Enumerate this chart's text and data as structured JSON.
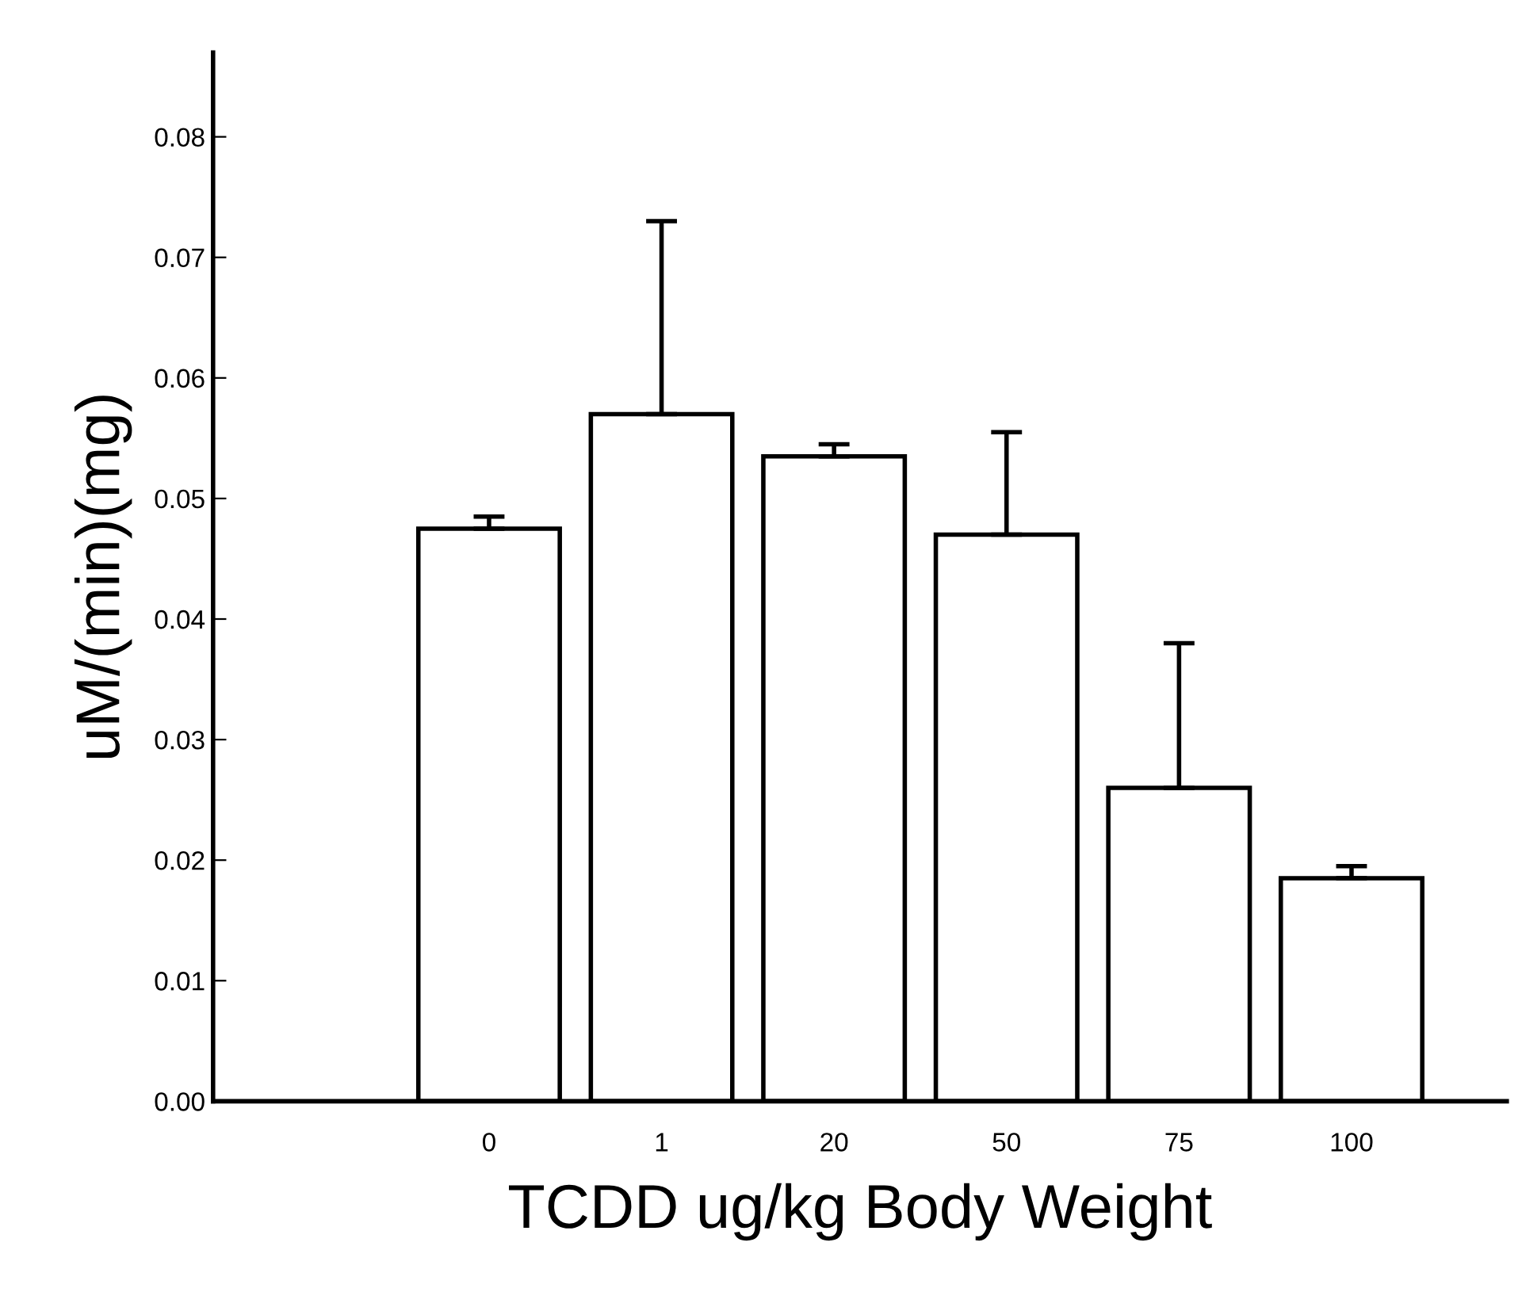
{
  "chart_data": {
    "type": "bar",
    "xlabel": "TCDD ug/kg Body Weight",
    "ylabel": "uM/(min)(mg)",
    "categories": [
      "0",
      "1",
      "20",
      "50",
      "75",
      "100"
    ],
    "values": [
      0.0475,
      0.057,
      0.0535,
      0.047,
      0.026,
      0.0185
    ],
    "errors": [
      [
        0.0475,
        0.0485
      ],
      [
        0.057,
        0.073
      ],
      [
        0.0535,
        0.0545
      ],
      [
        0.047,
        0.0555
      ],
      [
        0.026,
        0.038
      ],
      [
        0.0185,
        0.0195
      ]
    ],
    "color": "#ffffff",
    "ylim": [
      0,
      0.087
    ],
    "yticks": [
      {
        "value": 0,
        "label": "0.00"
      },
      0.01,
      0.02,
      0.03,
      0.04,
      0.05,
      0.06,
      0.07,
      0.08
    ],
    "grid": false
  }
}
